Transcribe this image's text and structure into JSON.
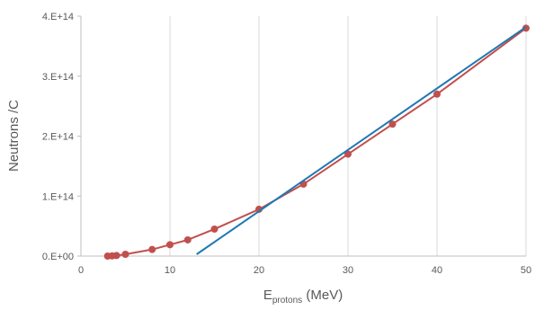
{
  "chart_data": {
    "type": "scatter",
    "title": "",
    "xlabel": {
      "main": "E",
      "sub": "protons",
      "rest": " (MeV)"
    },
    "ylabel": "Neutrons /C",
    "xlim": [
      0,
      50
    ],
    "ylim": [
      0,
      400000000000000.0
    ],
    "x_ticks": [
      {
        "value": 0,
        "label": "0"
      },
      {
        "value": 10,
        "label": "10"
      },
      {
        "value": 20,
        "label": "20"
      },
      {
        "value": 30,
        "label": "30"
      },
      {
        "value": 40,
        "label": "40"
      },
      {
        "value": 50,
        "label": "50"
      }
    ],
    "y_ticks": [
      {
        "value": 0,
        "label": "0.E+00"
      },
      {
        "value": 100000000000000.0,
        "label": "1.E+14"
      },
      {
        "value": 200000000000000.0,
        "label": "2.E+14"
      },
      {
        "value": 300000000000000.0,
        "label": "3.E+14"
      },
      {
        "value": 400000000000000.0,
        "label": "4.E+14"
      }
    ],
    "grid": "vertical",
    "legend": "none",
    "series": [
      {
        "color": "#c0504d",
        "style": "line-markers",
        "x": [
          3,
          3.5,
          4,
          5,
          8,
          10,
          12,
          15,
          20,
          25,
          30,
          35,
          40,
          50
        ],
        "y": [
          0.0,
          300000000000.0,
          1000000000000.0,
          3000000000000.0,
          11000000000000.0,
          19000000000000.0,
          27000000000000.0,
          45000000000000.0,
          78000000000000.0,
          120000000000000.0,
          170000000000000.0,
          220000000000000.0,
          270000000000000.0,
          380000000000000.0
        ]
      },
      {
        "color": "#1f77b4",
        "style": "line",
        "x": [
          13,
          50
        ],
        "y": [
          3000000000000.0,
          382000000000000.0
        ]
      }
    ]
  }
}
